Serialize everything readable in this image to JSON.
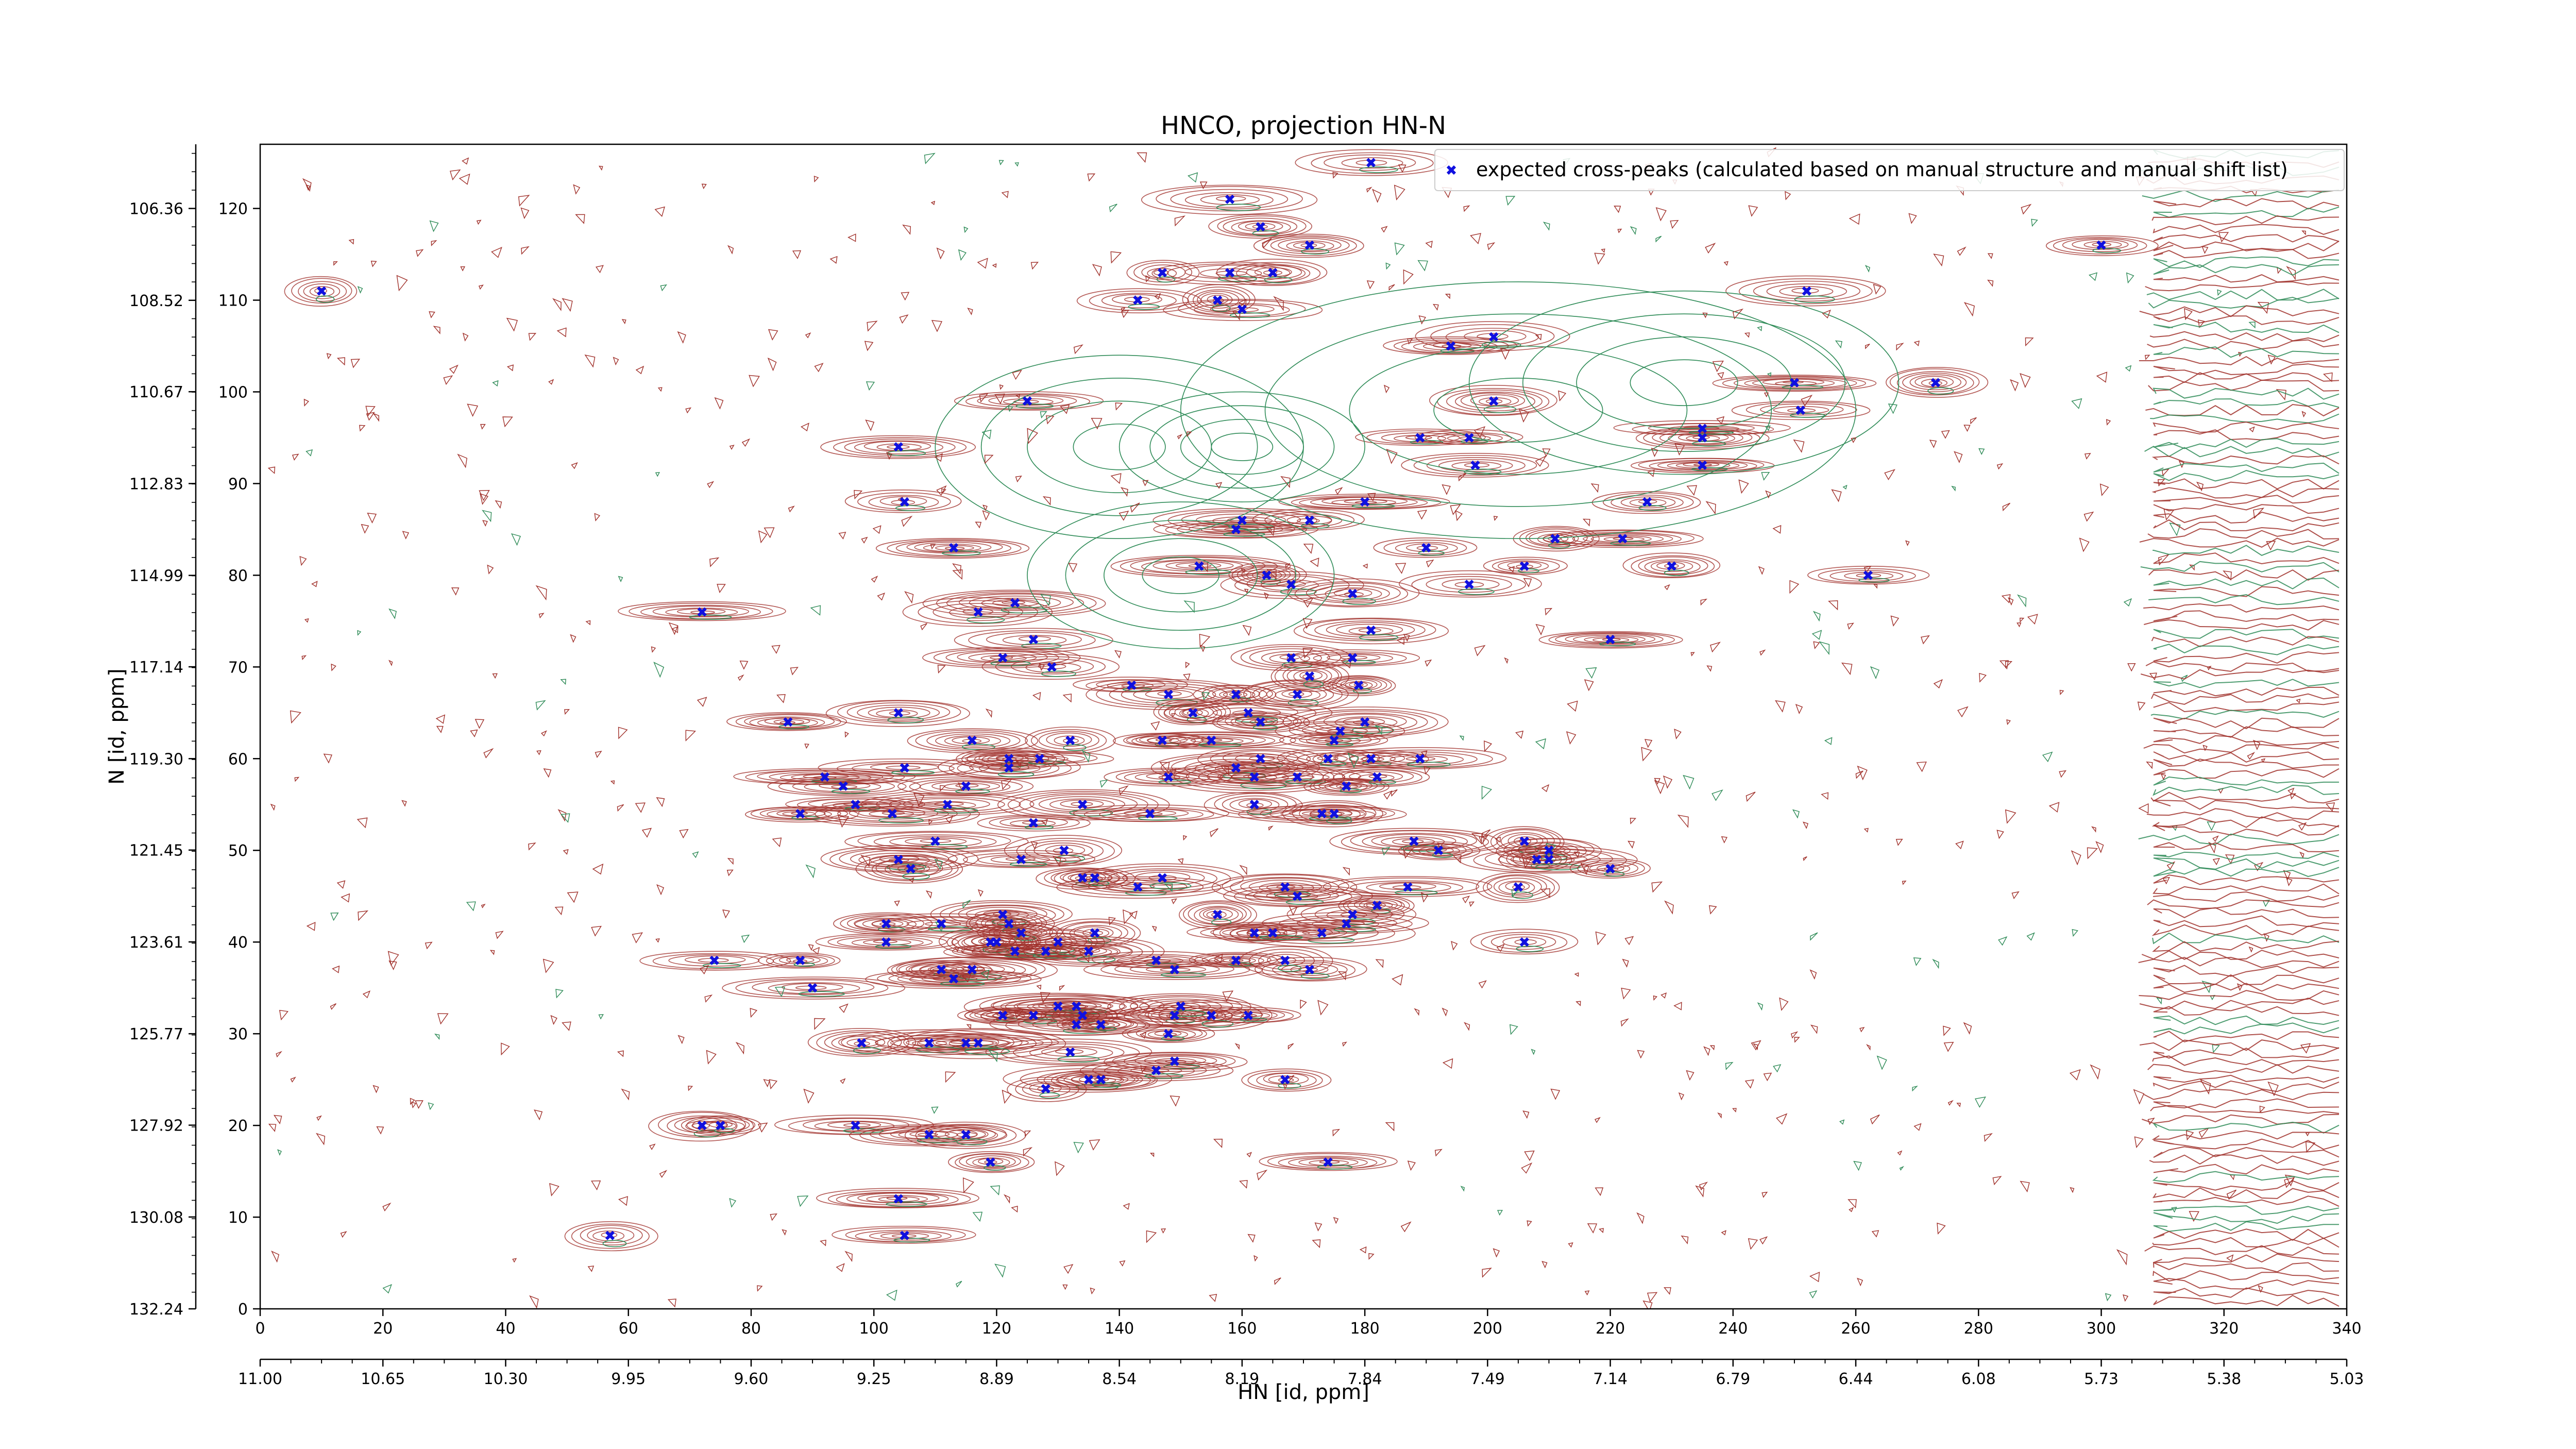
{
  "chart_data": {
    "type": "scatter",
    "title": "HNCO, projection HN-N",
    "xlabel": "HN [id, ppm]",
    "ylabel": "N [id, ppm]",
    "xlim": [
      0,
      340
    ],
    "ylim": [
      0,
      127
    ],
    "x_ticks": [
      0,
      20,
      40,
      60,
      80,
      100,
      120,
      140,
      160,
      180,
      200,
      220,
      240,
      260,
      280,
      300,
      320,
      340
    ],
    "y_ticks": [
      0,
      10,
      20,
      30,
      40,
      50,
      60,
      70,
      80,
      90,
      100,
      110,
      120
    ],
    "x_ppm_ticks": [
      "11.00",
      "10.65",
      "10.30",
      "9.95",
      "9.60",
      "9.25",
      "8.89",
      "8.54",
      "8.19",
      "7.84",
      "7.49",
      "7.14",
      "6.79",
      "6.44",
      "6.08",
      "5.73",
      "5.38",
      "5.03"
    ],
    "y_ppm_ticks": [
      "106.36",
      "108.52",
      "110.67",
      "112.83",
      "114.99",
      "117.14",
      "119.30",
      "121.45",
      "123.61",
      "125.77",
      "127.92",
      "130.08",
      "132.24"
    ],
    "y_ppm_values": [
      106.36,
      108.52,
      110.67,
      112.83,
      114.99,
      117.14,
      119.3,
      121.45,
      123.61,
      125.77,
      127.92,
      130.08,
      132.24
    ],
    "grid": false,
    "legend_position": "top-right",
    "colors": {
      "marker": "#1010e0",
      "contour_positive": "#a0302a",
      "contour_negative": "#2e8b57"
    },
    "series": [
      {
        "name": "expected cross-peaks (calculated based on manual structure and manual shift list)",
        "marker": "x",
        "points": [
          [
            10,
            111
          ],
          [
            181,
            125
          ],
          [
            158,
            121
          ],
          [
            163,
            118
          ],
          [
            171,
            116
          ],
          [
            300,
            116
          ],
          [
            143,
            110
          ],
          [
            147,
            113
          ],
          [
            156,
            110
          ],
          [
            158,
            113
          ],
          [
            160,
            109
          ],
          [
            165,
            113
          ],
          [
            252,
            111
          ],
          [
            194,
            105
          ],
          [
            201,
            106
          ],
          [
            125,
            99
          ],
          [
            189,
            95
          ],
          [
            197,
            95
          ],
          [
            198,
            92
          ],
          [
            201,
            99
          ],
          [
            235,
            95
          ],
          [
            235,
            96
          ],
          [
            235,
            92
          ],
          [
            251,
            98
          ],
          [
            250,
            101
          ],
          [
            273,
            101
          ],
          [
            104,
            94
          ],
          [
            105,
            88
          ],
          [
            180,
            88
          ],
          [
            226,
            88
          ],
          [
            113,
            83
          ],
          [
            159,
            85
          ],
          [
            160,
            86
          ],
          [
            171,
            86
          ],
          [
            190,
            83
          ],
          [
            211,
            84
          ],
          [
            222,
            84
          ],
          [
            230,
            81
          ],
          [
            164,
            80
          ],
          [
            153,
            81
          ],
          [
            168,
            79
          ],
          [
            178,
            78
          ],
          [
            197,
            79
          ],
          [
            206,
            81
          ],
          [
            262,
            80
          ],
          [
            72,
            76
          ],
          [
            117,
            76
          ],
          [
            123,
            77
          ],
          [
            126,
            73
          ],
          [
            121,
            71
          ],
          [
            129,
            70
          ],
          [
            168,
            71
          ],
          [
            181,
            74
          ],
          [
            220,
            73
          ],
          [
            179,
            68
          ],
          [
            178,
            71
          ],
          [
            142,
            68
          ],
          [
            148,
            67
          ],
          [
            152,
            65
          ],
          [
            159,
            67
          ],
          [
            169,
            67
          ],
          [
            171,
            69
          ],
          [
            161,
            65
          ],
          [
            180,
            64
          ],
          [
            163,
            64
          ],
          [
            86,
            64
          ],
          [
            104,
            65
          ],
          [
            116,
            62
          ],
          [
            132,
            62
          ],
          [
            147,
            62
          ],
          [
            155,
            62
          ],
          [
            175,
            62
          ],
          [
            176,
            63
          ],
          [
            163,
            60
          ],
          [
            181,
            60
          ],
          [
            189,
            60
          ],
          [
            122,
            60
          ],
          [
            127,
            60
          ],
          [
            115,
            57
          ],
          [
            92,
            58
          ],
          [
            95,
            57
          ],
          [
            105,
            59
          ],
          [
            97,
            55
          ],
          [
            88,
            54
          ],
          [
            103,
            54
          ],
          [
            112,
            55
          ],
          [
            122,
            59
          ],
          [
            159,
            59
          ],
          [
            162,
            58
          ],
          [
            169,
            58
          ],
          [
            174,
            60
          ],
          [
            177,
            57
          ],
          [
            182,
            58
          ],
          [
            134,
            55
          ],
          [
            145,
            54
          ],
          [
            148,
            58
          ],
          [
            162,
            55
          ],
          [
            173,
            54
          ],
          [
            175,
            54
          ],
          [
            126,
            53
          ],
          [
            131,
            50
          ],
          [
            110,
            51
          ],
          [
            124,
            49
          ],
          [
            188,
            51
          ],
          [
            192,
            50
          ],
          [
            206,
            51
          ],
          [
            210,
            50
          ],
          [
            208,
            49
          ],
          [
            104,
            49
          ],
          [
            106,
            48
          ],
          [
            134,
            47
          ],
          [
            136,
            47
          ],
          [
            205,
            46
          ],
          [
            210,
            49
          ],
          [
            220,
            48
          ],
          [
            143,
            46
          ],
          [
            147,
            47
          ],
          [
            167,
            46
          ],
          [
            169,
            45
          ],
          [
            182,
            44
          ],
          [
            178,
            43
          ],
          [
            187,
            46
          ],
          [
            102,
            42
          ],
          [
            111,
            42
          ],
          [
            121,
            43
          ],
          [
            122,
            42
          ],
          [
            102,
            40
          ],
          [
            120,
            40
          ],
          [
            124,
            41
          ],
          [
            130,
            40
          ],
          [
            136,
            41
          ],
          [
            156,
            43
          ],
          [
            162,
            41
          ],
          [
            173,
            41
          ],
          [
            177,
            42
          ],
          [
            159,
            38
          ],
          [
            165,
            41
          ],
          [
            171,
            37
          ],
          [
            74,
            38
          ],
          [
            88,
            38
          ],
          [
            90,
            35
          ],
          [
            111,
            37
          ],
          [
            119,
            40
          ],
          [
            123,
            39
          ],
          [
            128,
            39
          ],
          [
            135,
            39
          ],
          [
            146,
            38
          ],
          [
            149,
            37
          ],
          [
            167,
            38
          ],
          [
            206,
            40
          ],
          [
            116,
            37
          ],
          [
            113,
            36
          ],
          [
            130,
            33
          ],
          [
            133,
            33
          ],
          [
            134,
            32
          ],
          [
            121,
            32
          ],
          [
            126,
            32
          ],
          [
            149,
            32
          ],
          [
            155,
            32
          ],
          [
            161,
            32
          ],
          [
            133,
            31
          ],
          [
            137,
            31
          ],
          [
            150,
            33
          ],
          [
            148,
            30
          ],
          [
            132,
            28
          ],
          [
            149,
            27
          ],
          [
            167,
            25
          ],
          [
            115,
            29
          ],
          [
            109,
            29
          ],
          [
            98,
            29
          ],
          [
            117,
            29
          ],
          [
            135,
            25
          ],
          [
            137,
            25
          ],
          [
            146,
            26
          ],
          [
            72,
            20
          ],
          [
            75,
            20
          ],
          [
            97,
            20
          ],
          [
            109,
            19
          ],
          [
            119,
            16
          ],
          [
            174,
            16
          ],
          [
            104,
            12
          ],
          [
            105,
            8
          ],
          [
            57,
            8
          ],
          [
            115,
            19
          ],
          [
            128,
            24
          ]
        ]
      }
    ]
  }
}
